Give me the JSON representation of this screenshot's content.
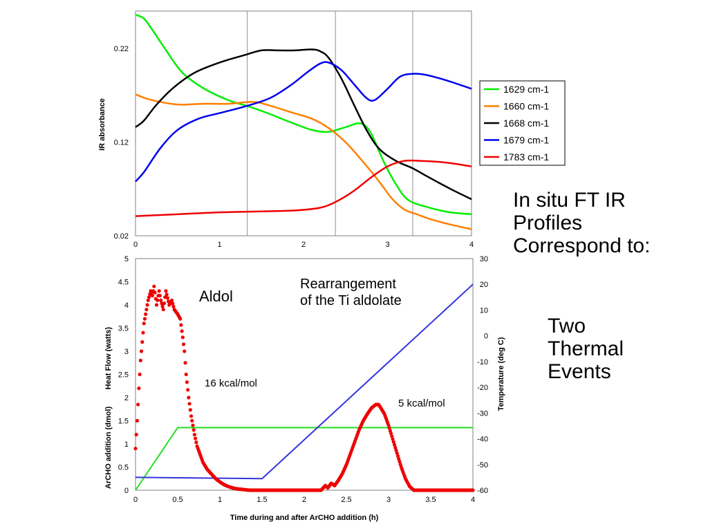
{
  "side_text": {
    "heading": [
      "In situ FT IR",
      "Profiles",
      "Correspond to:"
    ],
    "events": [
      "Two",
      "Thermal",
      "Events"
    ]
  },
  "chart_data": [
    {
      "type": "line",
      "title": "",
      "xlabel": "",
      "ylabel": "IR absorbance",
      "xlim": [
        0,
        4
      ],
      "ylim": [
        0.02,
        0.26
      ],
      "xticks": [
        "0",
        "1",
        "2",
        "3",
        "4"
      ],
      "yticks": [
        "0.02",
        "0.12",
        "0.22"
      ],
      "xtick_values": [
        0,
        1,
        2,
        3,
        4
      ],
      "ytick_values": [
        0.02,
        0.12,
        0.22
      ],
      "grid": "vertical",
      "gridlines_x": [
        1.33,
        2.38,
        3.3
      ],
      "legend_position": "right",
      "series": [
        {
          "name": "1629 cm-1",
          "color": "#00ee00",
          "x": [
            0,
            0.1,
            0.2,
            0.35,
            0.55,
            0.8,
            1.1,
            1.35,
            1.6,
            1.85,
            2.1,
            2.3,
            2.5,
            2.68,
            2.8,
            2.95,
            3.1,
            3.25,
            3.5,
            3.75,
            4.0
          ],
          "y": [
            0.256,
            0.252,
            0.24,
            0.22,
            0.195,
            0.178,
            0.165,
            0.158,
            0.15,
            0.141,
            0.133,
            0.131,
            0.136,
            0.14,
            0.13,
            0.1,
            0.075,
            0.058,
            0.05,
            0.045,
            0.043
          ]
        },
        {
          "name": "1660 cm-1",
          "color": "#ff7f00",
          "x": [
            0,
            0.15,
            0.35,
            0.55,
            0.8,
            1.1,
            1.4,
            1.6,
            1.85,
            2.1,
            2.3,
            2.5,
            2.7,
            2.9,
            3.05,
            3.2,
            3.35,
            3.5,
            3.75,
            4.0
          ],
          "y": [
            0.171,
            0.166,
            0.162,
            0.16,
            0.161,
            0.161,
            0.163,
            0.159,
            0.152,
            0.145,
            0.135,
            0.12,
            0.1,
            0.078,
            0.06,
            0.048,
            0.043,
            0.038,
            0.032,
            0.027
          ]
        },
        {
          "name": "1668 cm-1",
          "color": "#000000",
          "x": [
            0,
            0.1,
            0.25,
            0.45,
            0.7,
            1.0,
            1.3,
            1.5,
            1.7,
            1.9,
            2.1,
            2.2,
            2.3,
            2.45,
            2.6,
            2.75,
            2.9,
            3.1,
            3.3,
            3.5,
            3.75,
            4.0
          ],
          "y": [
            0.136,
            0.143,
            0.16,
            0.178,
            0.194,
            0.205,
            0.213,
            0.218,
            0.218,
            0.218,
            0.219,
            0.217,
            0.21,
            0.188,
            0.16,
            0.133,
            0.113,
            0.1,
            0.092,
            0.082,
            0.07,
            0.059
          ]
        },
        {
          "name": "1679 cm-1",
          "color": "#0000ee",
          "x": [
            0,
            0.1,
            0.3,
            0.5,
            0.75,
            1.0,
            1.3,
            1.6,
            1.85,
            2.05,
            2.2,
            2.3,
            2.45,
            2.6,
            2.75,
            2.85,
            3.0,
            3.15,
            3.3,
            3.45,
            3.7,
            4.0
          ],
          "y": [
            0.078,
            0.088,
            0.114,
            0.133,
            0.145,
            0.151,
            0.158,
            0.167,
            0.181,
            0.195,
            0.204,
            0.205,
            0.197,
            0.182,
            0.167,
            0.165,
            0.177,
            0.19,
            0.193,
            0.192,
            0.186,
            0.177
          ]
        },
        {
          "name": "1783 cm-1",
          "color": "#ee0000",
          "x": [
            0,
            0.5,
            1.0,
            1.5,
            1.9,
            2.2,
            2.4,
            2.6,
            2.8,
            3.0,
            3.2,
            3.4,
            3.6,
            3.8,
            4.0
          ],
          "y": [
            0.041,
            0.043,
            0.045,
            0.046,
            0.047,
            0.05,
            0.057,
            0.068,
            0.082,
            0.094,
            0.1,
            0.1,
            0.099,
            0.097,
            0.094
          ]
        }
      ]
    },
    {
      "type": "scatter+line",
      "title": "",
      "xlabel": "Time during and after ArCHO addition (h)",
      "ylabel": "ArCHO addition (dmol)        Heat Flow (watts)",
      "y2label": "Temperature (deg C)",
      "xlim": [
        0,
        4
      ],
      "ylim": [
        0,
        5
      ],
      "y2lim": [
        -60,
        30
      ],
      "xticks": [
        "0",
        "0.5",
        "1",
        "1.5",
        "2",
        "2.5",
        "3",
        "3.5",
        "4"
      ],
      "xtick_values": [
        0,
        0.5,
        1,
        1.5,
        2,
        2.5,
        3,
        3.5,
        4
      ],
      "yticks": [
        "0",
        "0.5",
        "1",
        "1.5",
        "2",
        "2.5",
        "3",
        "3.5",
        "4",
        "4.5",
        "5"
      ],
      "ytick_values": [
        0,
        0.5,
        1,
        1.5,
        2,
        2.5,
        3,
        3.5,
        4,
        4.5,
        5
      ],
      "y2ticks": [
        "-60",
        "-50",
        "-40",
        "-30",
        "-20",
        "-10",
        "0",
        "10",
        "20",
        "30"
      ],
      "y2tick_values": [
        -60,
        -50,
        -40,
        -30,
        -20,
        -10,
        0,
        10,
        20,
        30
      ],
      "grid": "none",
      "annotations": [
        {
          "text": "Aldol"
        },
        {
          "text": "Rearrangement\nof the Ti aldolate"
        },
        {
          "text": "16 kcal/mol"
        },
        {
          "text": "5 kcal/mol"
        }
      ],
      "series": [
        {
          "name": "ArCHO addition",
          "axis": "left",
          "kind": "line",
          "color": "#22dd22",
          "x": [
            0,
            0.5,
            4.0
          ],
          "y": [
            0,
            1.35,
            1.35
          ]
        },
        {
          "name": "Temperature",
          "axis": "right",
          "kind": "line",
          "color": "#3333dd",
          "x": [
            0,
            1.5,
            4.0
          ],
          "y": [
            -55,
            -55.5,
            20
          ]
        },
        {
          "name": "Heat Flow",
          "axis": "left",
          "kind": "scatter",
          "color": "#ee0000",
          "x": [
            0.0,
            0.02,
            0.04,
            0.06,
            0.08,
            0.1,
            0.12,
            0.15,
            0.18,
            0.2,
            0.22,
            0.25,
            0.28,
            0.3,
            0.33,
            0.36,
            0.4,
            0.43,
            0.46,
            0.5,
            0.53,
            0.56,
            0.58,
            0.6,
            0.63,
            0.66,
            0.7,
            0.73,
            0.76,
            0.8,
            0.85,
            0.9,
            0.95,
            1.0,
            1.05,
            1.1,
            1.15,
            1.2,
            1.25,
            1.3,
            1.35,
            1.5,
            1.8,
            2.1,
            2.2,
            2.25,
            2.28,
            2.32,
            2.36,
            2.4,
            2.45,
            2.5,
            2.55,
            2.6,
            2.65,
            2.7,
            2.75,
            2.8,
            2.85,
            2.88,
            2.9,
            2.95,
            3.0,
            3.05,
            3.1,
            3.15,
            3.2,
            3.25,
            3.3,
            3.5,
            3.8,
            4.0
          ],
          "y": [
            0.9,
            1.5,
            2.2,
            2.8,
            3.2,
            3.6,
            3.8,
            4.1,
            4.3,
            4.2,
            4.4,
            4.0,
            4.3,
            4.1,
            3.9,
            4.3,
            4.0,
            4.1,
            3.9,
            3.8,
            3.7,
            3.3,
            3.0,
            2.5,
            2.0,
            1.6,
            1.2,
            0.95,
            0.8,
            0.6,
            0.45,
            0.35,
            0.25,
            0.18,
            0.12,
            0.08,
            0.05,
            0.03,
            0.02,
            0.01,
            0.0,
            0.0,
            0.0,
            0.0,
            0.0,
            0.1,
            0.05,
            0.15,
            0.1,
            0.2,
            0.35,
            0.55,
            0.8,
            1.05,
            1.3,
            1.5,
            1.65,
            1.78,
            1.85,
            1.85,
            1.8,
            1.65,
            1.4,
            1.1,
            0.8,
            0.5,
            0.25,
            0.08,
            0.0,
            0.0,
            0.0,
            0.0
          ]
        }
      ]
    }
  ]
}
